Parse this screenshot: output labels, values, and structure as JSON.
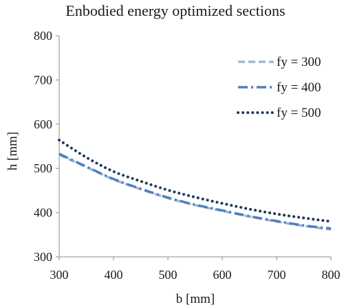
{
  "chart_data": {
    "type": "line",
    "title": "Enbodied energy optimized sections",
    "xlabel": "b [mm]",
    "ylabel": "h [mm]",
    "xlim": [
      300,
      800
    ],
    "ylim": [
      300,
      800
    ],
    "x_ticks": [
      "300",
      "400",
      "500",
      "600",
      "700",
      "800"
    ],
    "y_ticks": [
      "300",
      "400",
      "500",
      "600",
      "700",
      "800"
    ],
    "grid": false,
    "legend_position": "top-right",
    "x": [
      300,
      350,
      400,
      450,
      500,
      550,
      600,
      650,
      700,
      750,
      800
    ],
    "series": [
      {
        "name": "fy = 300",
        "style": "dashed",
        "color": "#9DB7DA",
        "values": [
          531,
          503,
          475,
          453,
          433,
          417,
          404,
          391,
          380,
          370,
          362
        ]
      },
      {
        "name": "fy = 400",
        "style": "dash-dot",
        "color": "#4F7FBF",
        "values": [
          533,
          504,
          476,
          454,
          434,
          418,
          405,
          392,
          381,
          371,
          364
        ]
      },
      {
        "name": "fy = 500",
        "style": "dotted",
        "color": "#1F3A5F",
        "values": [
          564,
          525,
          493,
          471,
          451,
          435,
          421,
          408,
          397,
          388,
          380
        ]
      }
    ]
  }
}
